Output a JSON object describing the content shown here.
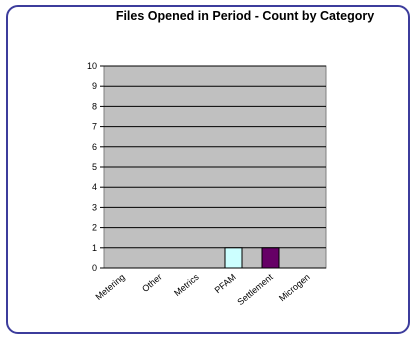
{
  "chart_data": {
    "type": "bar",
    "title": "Files Opened in Period - Count by Category",
    "categories": [
      "Metering",
      "Other",
      "Metrics",
      "PFAM",
      "Settlement",
      "Microgen"
    ],
    "values": [
      0,
      0,
      0,
      1,
      1,
      0
    ],
    "ylim": [
      0,
      10
    ],
    "yticks": [
      0,
      1,
      2,
      3,
      4,
      5,
      6,
      7,
      8,
      9,
      10
    ],
    "grid": true,
    "colors": {
      "plot_background": "#c0c0c0",
      "frame_border": "#3c3c9c",
      "bars": [
        "#ccffff",
        "#ccffff",
        "#ccffff",
        "#ccffff",
        "#660066",
        "#ccffff"
      ]
    }
  }
}
